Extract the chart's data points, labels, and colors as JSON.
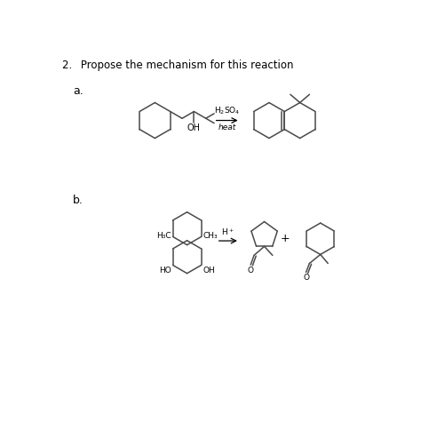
{
  "title": "2.  Propose the mechanism for this reaction",
  "label_a": "a.",
  "label_b": "b.",
  "bg_color": "#ffffff",
  "line_color": "#4a4a4a",
  "text_color": "#000000",
  "font_size": 8.5,
  "label_font_size": 9
}
